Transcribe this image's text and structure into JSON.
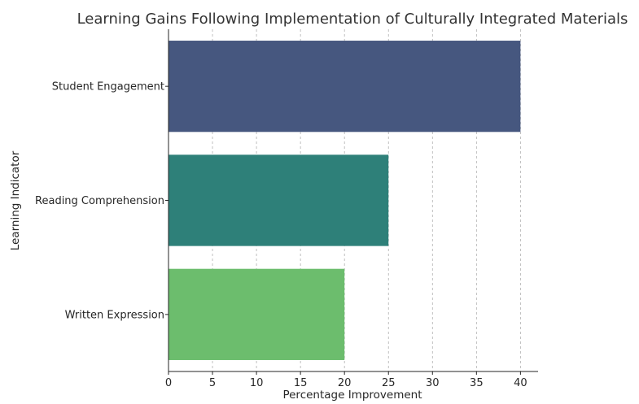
{
  "chart_data": {
    "type": "bar",
    "orientation": "horizontal",
    "title": "Learning Gains Following Implementation of Culturally Integrated Materials",
    "xlabel": "Percentage Improvement",
    "ylabel": "Learning Indicator",
    "categories": [
      "Student Engagement",
      "Reading Comprehension",
      "Written Expression"
    ],
    "values": [
      40,
      25,
      20
    ],
    "colors": [
      "#46577f",
      "#2e8079",
      "#6cbd6d"
    ],
    "xlim": [
      0,
      42
    ],
    "xticks": [
      0,
      5,
      10,
      15,
      20,
      25,
      30,
      35,
      40
    ],
    "grid": "x-dashed",
    "legend": "none"
  }
}
